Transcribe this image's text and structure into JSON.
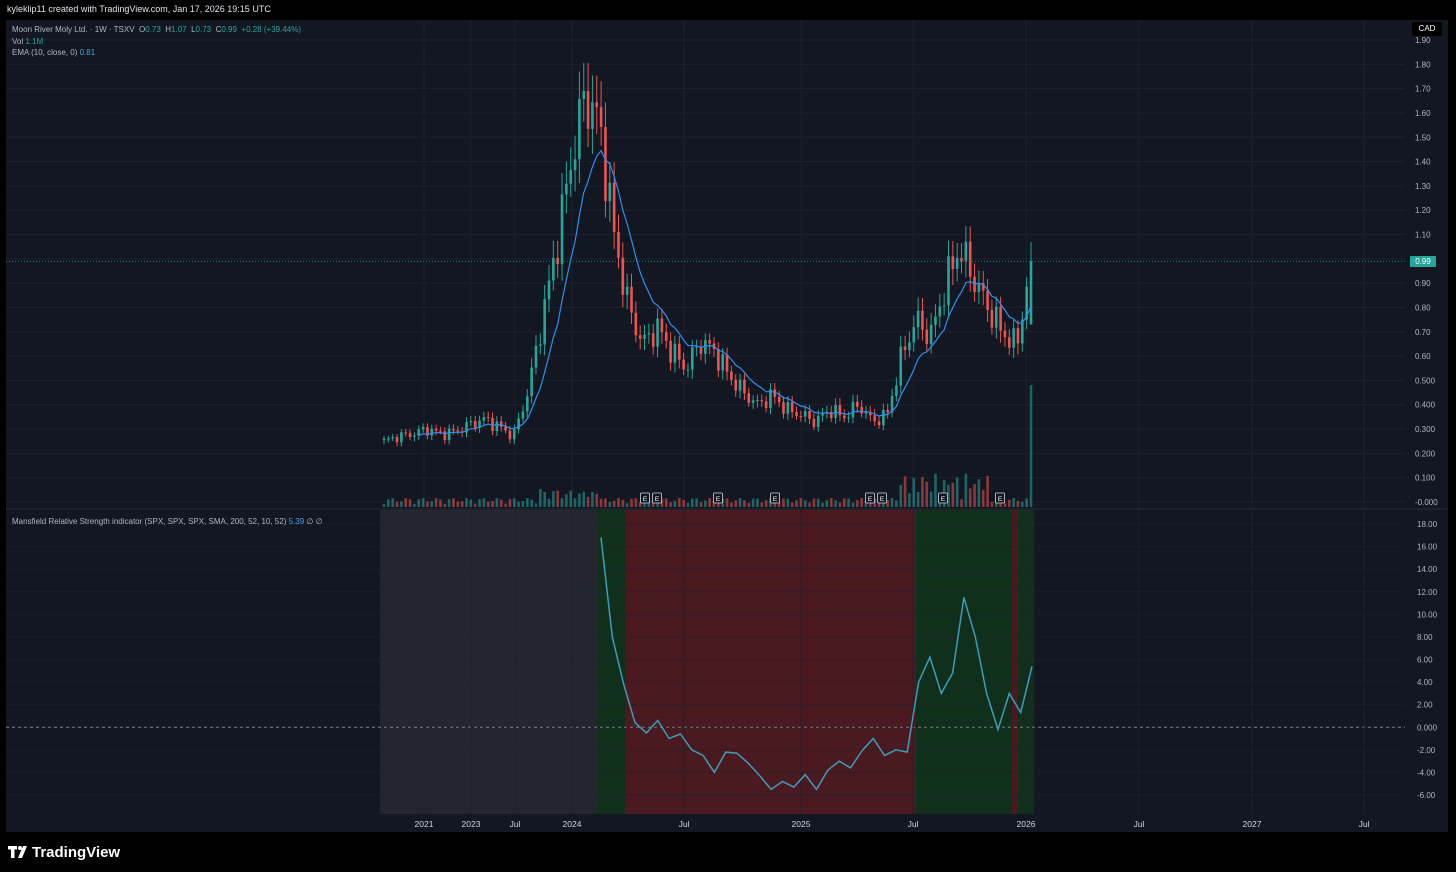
{
  "header": {
    "credit": "kyleklip11 created with TradingView.com, Jan 17, 2026 19:15 UTC"
  },
  "legend": {
    "symbol": "Moon River Moly Ltd. · 1W · TSXV",
    "o_label": "O",
    "o_value": "0.73",
    "h_label": "H",
    "h_value": "1.07",
    "l_label": "L",
    "l_value": "0.73",
    "c_label": "C",
    "c_value": "0.99",
    "change": "+0.28 (+39.44%)",
    "vol_label": "Vol",
    "vol_value": "1.1M",
    "ema_label": "EMA (10, close, 0)",
    "ema_value": "0.81"
  },
  "indicator": {
    "label": "Mansfield Relative Strength indicator (SPX, SPX, SPX, SMA, 200, 52, 10, 52)",
    "value": "5.39",
    "flags": "∅ ∅"
  },
  "currency": "CAD",
  "last_price": "0.99",
  "footer": {
    "brand": "TradingView"
  },
  "colors": {
    "up": "#26a69a",
    "down": "#ef5350",
    "ema": "#2f8ff0",
    "rs": "#3d9dbb",
    "bg": "#131722",
    "zone_green": "#10301c",
    "zone_red": "#4a1a20",
    "zone_grey": "#23262f"
  },
  "chart_data": [
    {
      "type": "candlestick",
      "title": "Moon River Moly Ltd. · 1W · TSXV",
      "y_ticks": [
        "1.90",
        "1.80",
        "1.70",
        "1.60",
        "1.50",
        "1.40",
        "1.30",
        "1.20",
        "1.10",
        "1.00",
        "0.90",
        "0.80",
        "0.70",
        "0.60",
        "0.500",
        "0.400",
        "0.300",
        "0.200",
        "0.100",
        "-0.000"
      ],
      "x_ticks": [
        "2021",
        "2023",
        "Jul",
        "2024",
        "Jul",
        "2025",
        "Jul",
        "2026",
        "Jul",
        "2027",
        "Jul"
      ],
      "earnings_markers": [
        "E",
        "E",
        "E",
        "E",
        "E",
        "E",
        "E",
        "E"
      ],
      "ema_period": 10,
      "last": {
        "open": 0.73,
        "high": 1.07,
        "low": 0.73,
        "close": 0.99
      },
      "approx_close_path": [
        0.25,
        0.27,
        0.28,
        0.3,
        0.28,
        0.29,
        0.32,
        0.34,
        0.31,
        0.27,
        0.45,
        0.75,
        1.05,
        1.4,
        1.68,
        1.55,
        1.1,
        0.8,
        0.65,
        0.72,
        0.62,
        0.55,
        0.66,
        0.62,
        0.52,
        0.45,
        0.4,
        0.44,
        0.38,
        0.36,
        0.33,
        0.38,
        0.35,
        0.4,
        0.33,
        0.36,
        0.6,
        0.75,
        0.68,
        0.88,
        1.05,
        0.92,
        0.8,
        0.7,
        0.64,
        0.99
      ]
    },
    {
      "type": "line",
      "title": "Mansfield Relative Strength indicator (SPX, SPX, SPX, SMA, 200, 52, 10, 52)",
      "y_ticks": [
        "18.00",
        "16.00",
        "14.00",
        "12.00",
        "10.00",
        "8.00",
        "6.00",
        "4.00",
        "2.00",
        "0.000",
        "-2.00",
        "-4.00",
        "-6.00"
      ],
      "last_value": 5.39,
      "approx_values": [
        16.8,
        8.0,
        3.8,
        0.4,
        -0.5,
        0.6,
        -1.0,
        -0.6,
        -2.0,
        -2.5,
        -4.0,
        -2.2,
        -2.3,
        -3.2,
        -4.3,
        -5.5,
        -4.8,
        -5.3,
        -4.2,
        -5.5,
        -3.8,
        -3.0,
        -3.6,
        -2.1,
        -1.0,
        -2.5,
        -2.0,
        -2.2,
        4.0,
        6.2,
        3.0,
        4.8,
        11.5,
        8.0,
        3.0,
        -0.2,
        3.0,
        1.3,
        5.39
      ],
      "zones": [
        "grey",
        "green",
        "red",
        "green",
        "red",
        "green"
      ]
    }
  ]
}
